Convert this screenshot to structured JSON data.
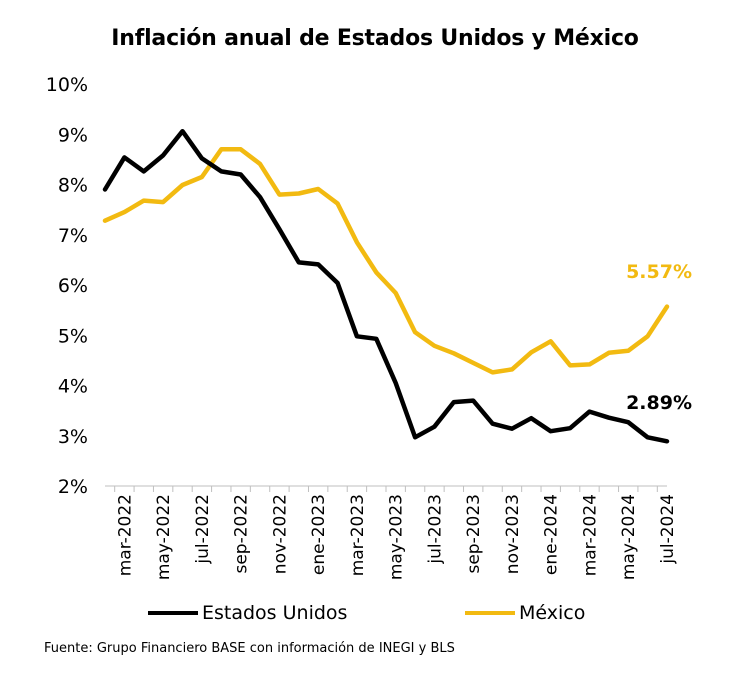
{
  "chart_data": {
    "type": "line",
    "title": "Inflación anual de Estados Unidos y México",
    "xlabel": "",
    "ylabel": "",
    "ylim": [
      2,
      10
    ],
    "yticks": [
      "2%",
      "3%",
      "4%",
      "5%",
      "6%",
      "7%",
      "8%",
      "9%",
      "10%"
    ],
    "x": [
      "feb-2022",
      "mar-2022",
      "abr-2022",
      "may-2022",
      "jun-2022",
      "jul-2022",
      "ago-2022",
      "sep-2022",
      "oct-2022",
      "nov-2022",
      "dic-2022",
      "ene-2023",
      "feb-2023",
      "mar-2023",
      "abr-2023",
      "may-2023",
      "jun-2023",
      "jul-2023",
      "ago-2023",
      "sep-2023",
      "oct-2023",
      "nov-2023",
      "dic-2023",
      "ene-2024",
      "feb-2024",
      "mar-2024",
      "abr-2024",
      "may-2024",
      "jun-2024",
      "jul-2024"
    ],
    "xtick_labels": [
      "mar-2022",
      "may-2022",
      "jul-2022",
      "sep-2022",
      "nov-2022",
      "ene-2023",
      "mar-2023",
      "may-2023",
      "jul-2023",
      "sep-2023",
      "nov-2023",
      "ene-2024",
      "mar-2024",
      "may-2024",
      "jul-2024"
    ],
    "series": [
      {
        "name": "Estados Unidos",
        "color": "#000000",
        "values": [
          7.9,
          8.54,
          8.26,
          8.58,
          9.06,
          8.52,
          8.26,
          8.2,
          7.75,
          7.11,
          6.45,
          6.41,
          6.04,
          4.98,
          4.93,
          4.05,
          2.97,
          3.18,
          3.67,
          3.7,
          3.24,
          3.14,
          3.35,
          3.09,
          3.15,
          3.48,
          3.36,
          3.27,
          2.97,
          2.89
        ],
        "end_label": "2.89%"
      },
      {
        "name": "México",
        "color": "#F2BA11",
        "values": [
          7.28,
          7.45,
          7.68,
          7.65,
          7.99,
          8.15,
          8.7,
          8.7,
          8.41,
          7.8,
          7.82,
          7.91,
          7.62,
          6.85,
          6.25,
          5.84,
          5.06,
          4.79,
          4.64,
          4.45,
          4.26,
          4.32,
          4.66,
          4.88,
          4.4,
          4.42,
          4.65,
          4.69,
          4.98,
          5.57
        ],
        "end_label": "5.57%"
      }
    ],
    "legend_position": "bottom",
    "grid": false
  },
  "source_note": "Fuente: Grupo Financiero BASE con información de INEGI y BLS"
}
